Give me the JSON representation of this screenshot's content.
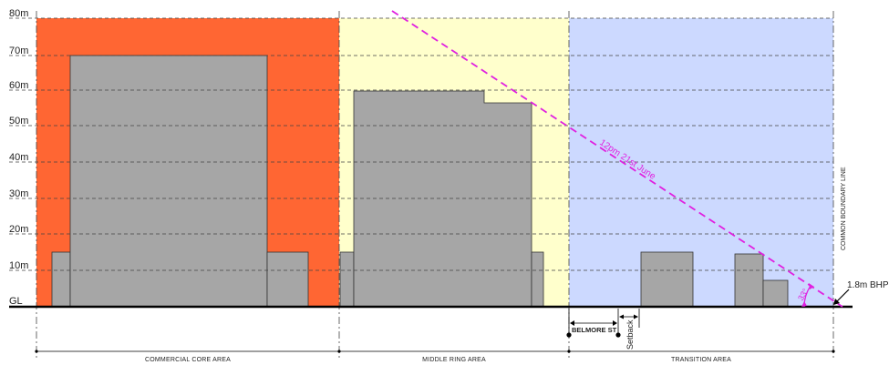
{
  "scale": {
    "unit": "m",
    "ground_label": "GL",
    "levels": [
      {
        "value": 10,
        "label": "10m"
      },
      {
        "value": 20,
        "label": "20m"
      },
      {
        "value": 30,
        "label": "30m"
      },
      {
        "value": 40,
        "label": "40m"
      },
      {
        "value": 50,
        "label": "50m"
      },
      {
        "value": 60,
        "label": "60m"
      },
      {
        "value": 70,
        "label": "70m"
      },
      {
        "value": 80,
        "label": "80m"
      }
    ]
  },
  "zones": {
    "commercial": {
      "label": "COMMERCIAL CORE AREA",
      "color": "#ff6633"
    },
    "middle": {
      "label": "MIDDLE RING AREA",
      "color": "#ffffcc"
    },
    "transition": {
      "label": "TRANSITION AREA",
      "color": "#ccd9ff"
    }
  },
  "annotations": {
    "sun_line": "12pm 21st June",
    "angle": "33°",
    "bhp": "1.8m BHP",
    "boundary": "COMMON BOUNDARY LINE",
    "street": "BELMORE ST",
    "setback": "Setback"
  },
  "colors": {
    "building": "#a6a6a6",
    "sun_line": "#e020e0"
  }
}
